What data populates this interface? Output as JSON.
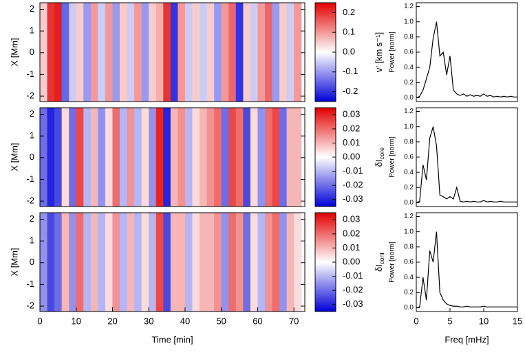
{
  "chart_data": [
    {
      "type": "heatmap",
      "ylabel": "X [Mm]",
      "xlim": [
        0,
        73
      ],
      "ylim": [
        -2.25,
        2.3
      ],
      "yticks": [
        -2,
        -1,
        0,
        1,
        2
      ],
      "x": [
        0,
        2,
        4,
        6,
        8,
        10,
        12,
        14,
        16,
        18,
        20,
        22,
        24,
        26,
        28,
        30,
        32,
        34,
        36,
        38,
        40,
        42,
        44,
        46,
        48,
        50,
        52,
        54,
        56,
        58,
        60,
        62,
        64,
        66,
        68,
        70
      ],
      "values": [
        0.05,
        0.2,
        0.22,
        -0.15,
        -0.05,
        0.05,
        -0.1,
        0.1,
        -0.05,
        0.1,
        -0.1,
        0.05,
        -0.05,
        0.1,
        -0.1,
        0.05,
        0.08,
        0.2,
        -0.2,
        0.1,
        -0.05,
        0.05,
        -0.05,
        0.05,
        -0.1,
        0.1,
        0.15,
        -0.2,
        0.05,
        -0.05,
        0.1,
        0.15,
        -0.1,
        0.05,
        -0.05,
        0.1
      ],
      "clim": [
        -0.25,
        0.25
      ],
      "cticks": [
        -0.2,
        -0.1,
        {
          "value": 0,
          "label": "0.0"
        },
        0.1,
        0.2
      ],
      "cbar_label": "v' [km s⁻¹]"
    },
    {
      "type": "heatmap",
      "ylabel": "X [Mm]",
      "xlim": [
        0,
        73
      ],
      "ylim": [
        -2.25,
        2.3
      ],
      "yticks": [
        -2,
        -1,
        0,
        1,
        2
      ],
      "x": [
        0,
        2,
        4,
        6,
        8,
        10,
        12,
        14,
        16,
        18,
        20,
        22,
        24,
        26,
        28,
        30,
        32,
        34,
        36,
        38,
        40,
        42,
        44,
        46,
        48,
        50,
        52,
        54,
        56,
        58,
        60,
        62,
        64,
        66,
        68,
        70
      ],
      "values": [
        -0.02,
        -0.03,
        -0.025,
        0.005,
        -0.02,
        0.025,
        -0.01,
        0.01,
        -0.015,
        0.005,
        0.02,
        -0.01,
        0.015,
        -0.01,
        0.005,
        -0.015,
        0.03,
        -0.03,
        0.01,
        0.015,
        -0.01,
        0.005,
        0.01,
        0.015,
        0.02,
        -0.02,
        0.025,
        0.02,
        -0.025,
        0.005,
        -0.015,
        0.02,
        0.025,
        -0.02,
        0.01,
        0.01
      ],
      "clim": [
        -0.035,
        0.035
      ],
      "cticks": [
        -0.03,
        -0.02,
        -0.01,
        {
          "value": 0,
          "label": "0.00"
        },
        0.01,
        0.02,
        0.03
      ],
      "cbar_label": "δI",
      "cbar_sub": "core"
    },
    {
      "type": "heatmap",
      "ylabel": "X [Mm]",
      "xlim": [
        0,
        73
      ],
      "ylim": [
        -2.25,
        2.3
      ],
      "yticks": [
        -2,
        -1,
        0,
        1,
        2
      ],
      "xticks": [
        0,
        10,
        20,
        30,
        40,
        50,
        60,
        70
      ],
      "xlabel": "Time [min]",
      "x": [
        0,
        2,
        4,
        6,
        8,
        10,
        12,
        14,
        16,
        18,
        20,
        22,
        24,
        26,
        28,
        30,
        32,
        34,
        36,
        38,
        40,
        42,
        44,
        46,
        48,
        50,
        52,
        54,
        56,
        58,
        60,
        62,
        64,
        66,
        68,
        70
      ],
      "values": [
        -0.015,
        -0.025,
        -0.02,
        0.01,
        -0.015,
        0.02,
        -0.01,
        0.01,
        -0.01,
        0.005,
        0.015,
        -0.01,
        0.01,
        -0.01,
        0.005,
        -0.01,
        0.025,
        -0.025,
        0.01,
        0.01,
        -0.01,
        0.005,
        0.01,
        0.01,
        0.015,
        -0.015,
        0.02,
        0.015,
        -0.02,
        0.005,
        -0.01,
        0.015,
        0.02,
        -0.015,
        0.01,
        0.005
      ],
      "clim": [
        -0.035,
        0.035
      ],
      "cticks": [
        -0.03,
        -0.02,
        -0.01,
        {
          "value": 0,
          "label": "0.00"
        },
        0.01,
        0.02,
        0.03
      ],
      "cbar_label": "δI",
      "cbar_sub": "cont"
    },
    {
      "type": "line",
      "ylabel": "Power [norm]",
      "xlim": [
        0,
        15
      ],
      "ylim": [
        -0.05,
        1.25
      ],
      "yticks": [
        {
          "value": 0,
          "label": "0.0"
        },
        0.2,
        0.4,
        0.6,
        0.8,
        {
          "value": 1,
          "label": "1.0"
        },
        1.2
      ],
      "x": [
        0,
        0.5,
        1,
        1.5,
        2,
        2.5,
        3,
        3.5,
        4,
        4.5,
        5,
        5.5,
        6,
        6.5,
        7,
        7.5,
        8,
        8.5,
        9,
        9.5,
        10,
        10.5,
        11,
        11.5,
        12,
        12.5,
        13,
        13.5,
        14,
        14.5,
        15
      ],
      "values": [
        0,
        0.02,
        0.1,
        0.25,
        0.4,
        0.78,
        1.0,
        0.55,
        0.6,
        0.3,
        0.55,
        0.1,
        0.05,
        0.03,
        0.05,
        0.02,
        0.04,
        0.02,
        0.03,
        0.02,
        0.05,
        0.02,
        0.03,
        0.01,
        0.02,
        0.01,
        0.02,
        0.01,
        0.02,
        0.01,
        0.01
      ]
    },
    {
      "type": "line",
      "ylabel": "Power [norm]",
      "xlim": [
        0,
        15
      ],
      "ylim": [
        -0.05,
        1.25
      ],
      "yticks": [
        {
          "value": 0,
          "label": "0.0"
        },
        0.2,
        0.4,
        0.6,
        0.8,
        {
          "value": 1,
          "label": "1.0"
        },
        1.2
      ],
      "x": [
        0,
        0.5,
        1,
        1.5,
        2,
        2.5,
        3,
        3.5,
        4,
        4.5,
        5,
        5.5,
        6,
        6.5,
        7,
        7.5,
        8,
        8.5,
        9,
        9.5,
        10,
        10.5,
        11,
        11.5,
        12,
        12.5,
        13,
        13.5,
        14,
        14.5,
        15
      ],
      "values": [
        0,
        0.02,
        0.5,
        0.3,
        0.85,
        1.0,
        0.75,
        0.1,
        0.08,
        0.05,
        0.08,
        0.05,
        0.2,
        0.02,
        0.01,
        0.02,
        0.01,
        0.02,
        0.01,
        0.01,
        0.03,
        0.01,
        0.02,
        0.01,
        0.01,
        0.02,
        0.01,
        0.01,
        0.01,
        0.01,
        0.01
      ]
    },
    {
      "type": "line",
      "ylabel": "Power [norm]",
      "xlim": [
        0,
        15
      ],
      "ylim": [
        -0.05,
        1.25
      ],
      "yticks": [
        {
          "value": 0,
          "label": "0.0"
        },
        0.2,
        0.4,
        0.6,
        0.8,
        {
          "value": 1,
          "label": "1.0"
        },
        1.2
      ],
      "xticks": [
        0,
        5,
        10,
        15
      ],
      "xlabel": "Freq [mHz]",
      "x": [
        0,
        0.5,
        1,
        1.5,
        2,
        2.5,
        3,
        3.5,
        4,
        4.5,
        5,
        5.5,
        6,
        6.5,
        7,
        7.5,
        8,
        8.5,
        9,
        9.5,
        10,
        10.5,
        11,
        11.5,
        12,
        12.5,
        13,
        13.5,
        14,
        14.5,
        15
      ],
      "values": [
        0,
        0.01,
        0.4,
        0.1,
        0.75,
        0.6,
        1.0,
        0.2,
        0.1,
        0.05,
        0.03,
        0.02,
        0.02,
        0.01,
        0.01,
        0.02,
        0.01,
        0.01,
        0.01,
        0.01,
        0.02,
        0.01,
        0.01,
        0.01,
        0.01,
        0.01,
        0.01,
        0.01,
        0.01,
        0.01,
        0.01
      ]
    }
  ]
}
